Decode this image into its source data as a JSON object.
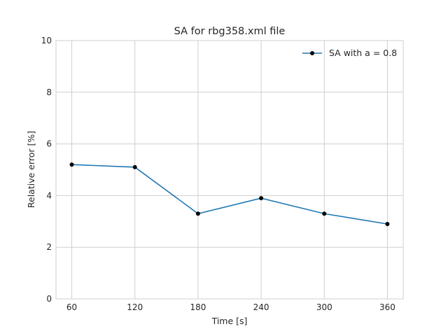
{
  "chart_data": {
    "type": "line",
    "title": "SA for rbg358.xml file",
    "xlabel": "Time [s]",
    "ylabel": "Relative error [%]",
    "x": [
      60,
      120,
      180,
      240,
      300,
      360
    ],
    "xticks": [
      "60",
      "120",
      "180",
      "240",
      "300",
      "360"
    ],
    "yticks": [
      "0",
      "2",
      "4",
      "6",
      "8",
      "10"
    ],
    "ylim": [
      0,
      10
    ],
    "xlim": [
      45,
      375
    ],
    "grid": true,
    "legend_position": "top-right",
    "series": [
      {
        "name": "SA with a = 0.8",
        "values": [
          5.2,
          5.1,
          3.3,
          3.9,
          3.3,
          2.9
        ],
        "color": "#1f77b4",
        "marker_color": "#000000"
      }
    ]
  }
}
